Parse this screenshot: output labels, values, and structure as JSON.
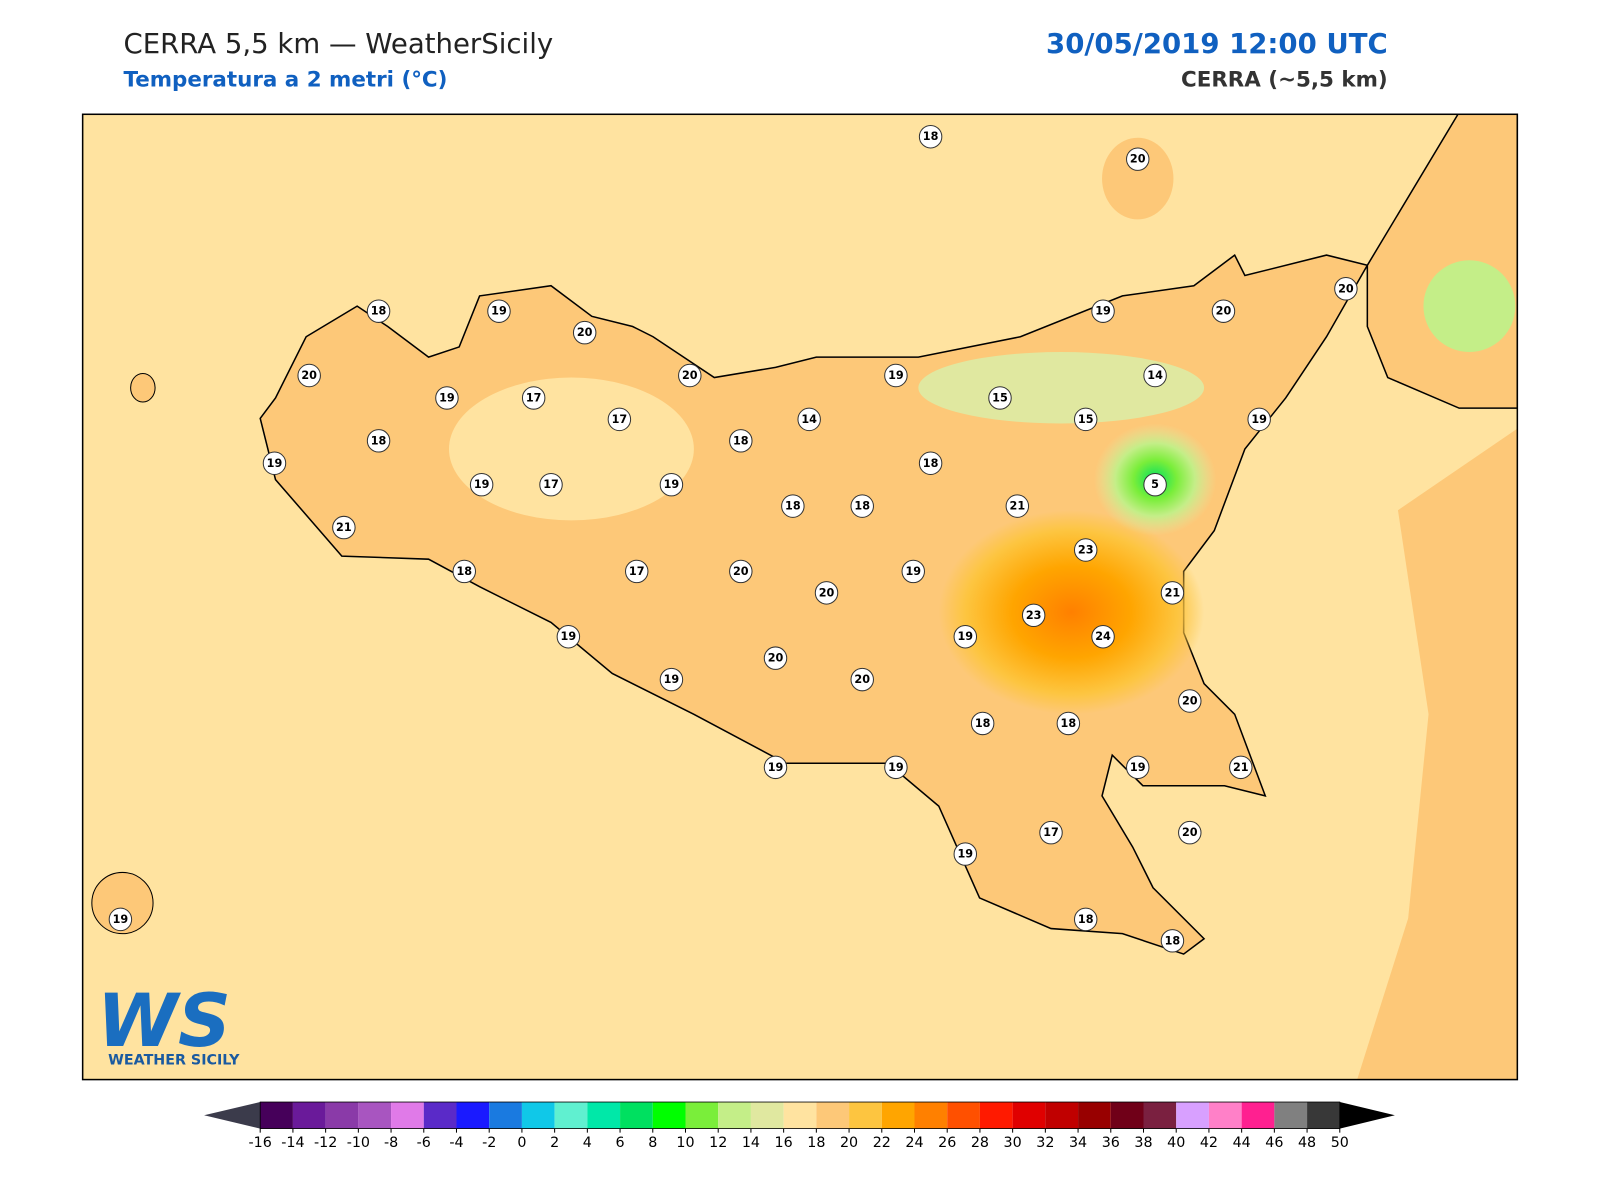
{
  "header": {
    "title": "CERRA 5,5 km — WeatherSicily",
    "subtitle": "Temperatura a 2 metri (°C)",
    "datetime": "30/05/2019 12:00 UTC",
    "model": "CERRA (~5,5 km)"
  },
  "stations": [
    18,
    20,
    18,
    19,
    20,
    19,
    20,
    20,
    20,
    19,
    17,
    20,
    19,
    15,
    14,
    17,
    14,
    15,
    19,
    18,
    18,
    19,
    18,
    5,
    19,
    17,
    19,
    18,
    18,
    21,
    21,
    23,
    18,
    17,
    20,
    19,
    20,
    21,
    23,
    24,
    19,
    19,
    20,
    19,
    20,
    20,
    18,
    18,
    19,
    19,
    19,
    21,
    17,
    20,
    19,
    19,
    18,
    18
  ],
  "colorbar": {
    "ticks": [
      -16,
      -14,
      -12,
      -10,
      -8,
      -6,
      -4,
      -2,
      0,
      2,
      4,
      6,
      8,
      10,
      12,
      14,
      16,
      18,
      20,
      22,
      24,
      26,
      28,
      30,
      32,
      34,
      36,
      38,
      40,
      42,
      44,
      46,
      48,
      50
    ],
    "colors": [
      "#46005a",
      "#6a1a9a",
      "#8a3aa8",
      "#a855c0",
      "#e07ae8",
      "#5a2ac8",
      "#1a1aff",
      "#1a7ae0",
      "#10c8e8",
      "#60f0d0",
      "#00e8a8",
      "#00e060",
      "#00ff00",
      "#7aee3a",
      "#c4ee88",
      "#e0e8a0",
      "#ffe3a0",
      "#fdc878",
      "#fdc540",
      "#ffa500",
      "#ff8000",
      "#ff5000",
      "#ff1a00",
      "#e00000",
      "#c00000",
      "#980000",
      "#700018",
      "#7a2040",
      "#d8a0ff",
      "#ff80c8",
      "#ff2090",
      "#808080",
      "#383838"
    ],
    "under_color": "#3b3b4b",
    "over_color": "#000000"
  },
  "logo": {
    "mark": "WS",
    "name": "WEATHER SICILY"
  }
}
